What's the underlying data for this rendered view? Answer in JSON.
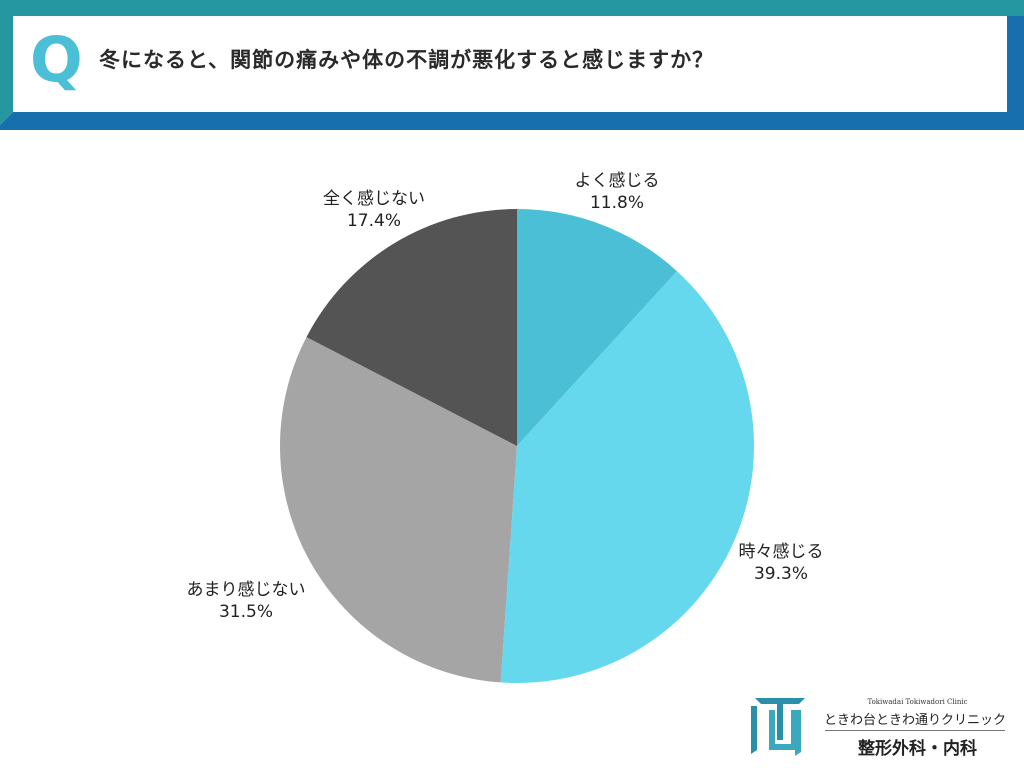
{
  "header": {
    "q_mark": "Q",
    "question": "冬になると、関節の痛みや体の不調が悪化すると感じますか？",
    "colors": {
      "top_band": "#2497a0",
      "bottom_band": "#1770ad",
      "q_mark": "#4bbfd6"
    }
  },
  "chart_data": {
    "type": "pie",
    "title": "冬になると、関節の痛みや体の不調が悪化すると感じますか？",
    "categories": [
      "よく感じる",
      "時々感じる",
      "あまり感じない",
      "全く感じない"
    ],
    "values": [
      11.8,
      39.3,
      31.5,
      17.4
    ],
    "unit": "%",
    "colors": [
      "#4bbfd6",
      "#66d8ed",
      "#a5a5a5",
      "#545454"
    ],
    "start_angle": "12 o'clock, clockwise",
    "legend": "none (labels placed outside slices)"
  },
  "labels": [
    {
      "name": "よく感じる",
      "value": "11.8%"
    },
    {
      "name": "時々感じる",
      "value": "39.3%"
    },
    {
      "name": "あまり感じない",
      "value": "31.5%"
    },
    {
      "name": "全く感じない",
      "value": "17.4%"
    }
  ],
  "logo": {
    "english": "Tokiwadai Tokiwadori Clinic",
    "name": "ときわ台ときわ通りクリニック",
    "department": "整形外科・内科",
    "mark_color": "#2a8fa8"
  }
}
